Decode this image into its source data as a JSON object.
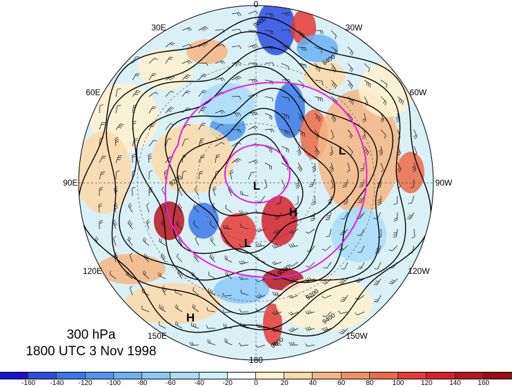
{
  "title": {
    "level": "300 hPa",
    "time": "1800 UTC 3 Nov 1998"
  },
  "longitude_labels": {
    "lon_0": "0",
    "lon_30w": "30W",
    "lon_60w": "60W",
    "lon_90w": "90W",
    "lon_120w": "120W",
    "lon_150w": "150W",
    "lon_180": "180",
    "lon_150e": "150E",
    "lon_120e": "120E",
    "lon_90e": "90E",
    "lon_60e": "60E",
    "lon_30e": "30E"
  },
  "pressure_centers": {
    "low_pole": "L",
    "low_east": "L",
    "low_south": "L",
    "high_center": "H",
    "high_southwest": "H"
  },
  "contour_labels": [
    "9600",
    "9400",
    "9200",
    "9000",
    "9200",
    "9400",
    "9600"
  ],
  "colorbar": {
    "ticks": [
      "-160",
      "-140",
      "-120",
      "-100",
      "-80",
      "-60",
      "-40",
      "-20",
      "0",
      "20",
      "40",
      "60",
      "80",
      "100",
      "120",
      "140",
      "160"
    ],
    "colors": [
      "#1a10d0",
      "#2a4ee0",
      "#3a78ea",
      "#4f96f0",
      "#6ab2f4",
      "#88c8f7",
      "#a8dcfa",
      "#cdeefb",
      "#ffffff",
      "#fff1cf",
      "#fbd9a8",
      "#f6b682",
      "#f19160",
      "#ec6a48",
      "#e63a34",
      "#d6202a",
      "#b81420",
      "#9a0e18"
    ]
  },
  "colors": {
    "jet_magenta": "#e020e0",
    "contour": "#000000"
  }
}
